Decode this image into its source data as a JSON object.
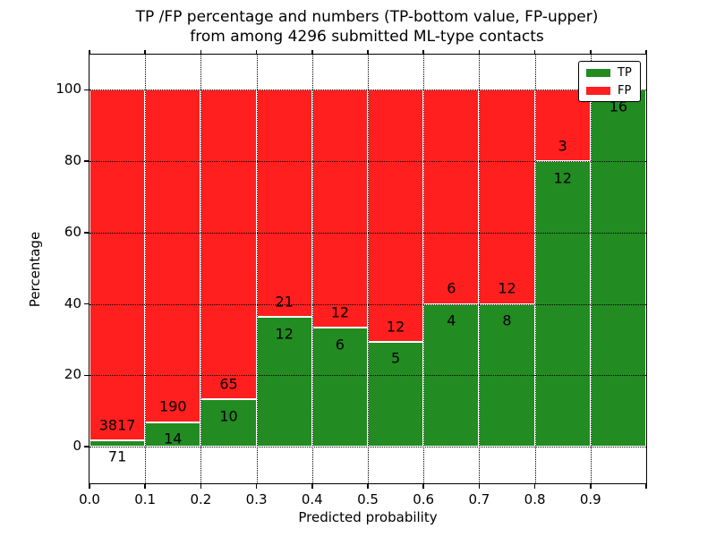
{
  "title": {
    "line1": "TP /FP percentage and numbers (TP-bottom value, FP-upper)",
    "line2": "from among 4296 submitted ML-type contacts"
  },
  "axes": {
    "xlabel": "Predicted probability",
    "ylabel": "Percentage",
    "x_tick_labels": [
      "0.0",
      "0.1",
      "0.2",
      "0.3",
      "0.4",
      "0.5",
      "0.6",
      "0.7",
      "0.8",
      "0.9"
    ],
    "y_ticks": [
      0,
      20,
      40,
      60,
      80,
      100
    ]
  },
  "legend": {
    "items": [
      {
        "label": "TP",
        "color": "#228b22"
      },
      {
        "label": "FP",
        "color": "#ff1f1f"
      }
    ],
    "position": "upper right"
  },
  "chart_data": {
    "type": "bar",
    "variant": "stacked-percentage",
    "title": "TP /FP percentage and numbers (TP-bottom value, FP-upper) from among 4296 submitted ML-type contacts",
    "xlabel": "Predicted probability",
    "ylabel": "Percentage",
    "total_contacts": 4296,
    "bin_edges": [
      0.0,
      0.1,
      0.2,
      0.3,
      0.4,
      0.5,
      0.6,
      0.7,
      0.8,
      0.9,
      1.0
    ],
    "categories": [
      "0.0-0.1",
      "0.1-0.2",
      "0.2-0.3",
      "0.3-0.4",
      "0.4-0.5",
      "0.5-0.6",
      "0.6-0.7",
      "0.7-0.8",
      "0.8-0.9",
      "0.9-1.0"
    ],
    "series": [
      {
        "name": "TP",
        "color": "#228b22",
        "counts": [
          71,
          14,
          10,
          12,
          6,
          5,
          4,
          8,
          12,
          16
        ],
        "pct": [
          1.83,
          6.86,
          13.33,
          36.36,
          33.33,
          29.41,
          40.0,
          40.0,
          80.0,
          100.0
        ]
      },
      {
        "name": "FP",
        "color": "#ff1f1f",
        "counts": [
          3817,
          190,
          65,
          21,
          12,
          12,
          6,
          12,
          3,
          0
        ],
        "pct": [
          98.17,
          93.14,
          86.67,
          63.64,
          66.67,
          70.59,
          60.0,
          60.0,
          20.0,
          0.0
        ]
      }
    ],
    "tp_count_labels": [
      "71",
      "14",
      "10",
      "12",
      "6",
      "5",
      "4",
      "8",
      "12",
      "16"
    ],
    "fp_count_labels": [
      "3817",
      "190",
      "65",
      "21",
      "12",
      "12",
      "6",
      "12",
      "3",
      null
    ],
    "ylim": [
      -10.3,
      109.9
    ],
    "xlim": [
      0.0,
      1.0
    ],
    "grid": true,
    "legend_position": "upper right"
  }
}
